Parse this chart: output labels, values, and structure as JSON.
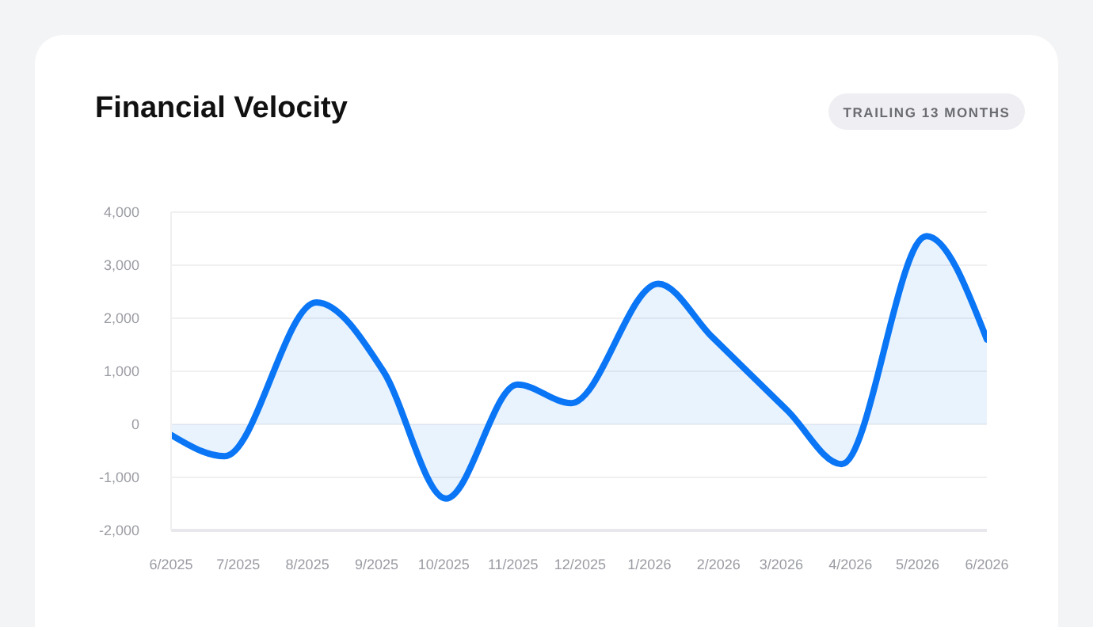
{
  "chart_data": {
    "type": "area",
    "title": "Financial Velocity",
    "subtitle": "TRAILING 13 MONTHS",
    "x": [
      "2025-06-01",
      "2025-06-25",
      "2025-08-05",
      "2025-09-04",
      "2025-10-02",
      "2025-11-03",
      "2025-11-27",
      "2026-01-05",
      "2026-01-29",
      "2026-03-04",
      "2026-03-28",
      "2026-05-05",
      "2026-06-01"
    ],
    "series": [
      {
        "color": "#0b76f5",
        "values": [
          -200,
          -600,
          2300,
          1000,
          -1400,
          750,
          400,
          2650,
          1650,
          250,
          -750,
          3550,
          1600
        ]
      }
    ],
    "xlim": [
      "2025-06",
      "2026-06"
    ],
    "xticks": [
      {
        "value": "2025-06",
        "label": "6/2025"
      },
      {
        "value": "2025-07",
        "label": "7/2025"
      },
      {
        "value": "2025-08",
        "label": "8/2025"
      },
      {
        "value": "2025-09",
        "label": "9/2025"
      },
      {
        "value": "2025-10",
        "label": "10/2025"
      },
      {
        "value": "2025-11",
        "label": "11/2025"
      },
      {
        "value": "2025-12",
        "label": "12/2025"
      },
      {
        "value": "2026-01",
        "label": "1/2026"
      },
      {
        "value": "2026-02",
        "label": "2/2026"
      },
      {
        "value": "2026-03",
        "label": "3/2026"
      },
      {
        "value": "2026-04",
        "label": "4/2026"
      },
      {
        "value": "2026-05",
        "label": "5/2026"
      },
      {
        "value": "2026-06",
        "label": "6/2026"
      }
    ],
    "ylim": [
      -2000,
      4000
    ],
    "yticks": [
      {
        "value": -2000,
        "label": "-2,000"
      },
      {
        "value": -1000,
        "label": "-1,000"
      },
      {
        "value": 0,
        "label": "0"
      },
      {
        "value": 1000,
        "label": "1,000"
      },
      {
        "value": 2000,
        "label": "2,000"
      },
      {
        "value": 3000,
        "label": "3,000"
      },
      {
        "value": 4000,
        "label": "4,000"
      }
    ],
    "grid": "y",
    "legend": false
  }
}
